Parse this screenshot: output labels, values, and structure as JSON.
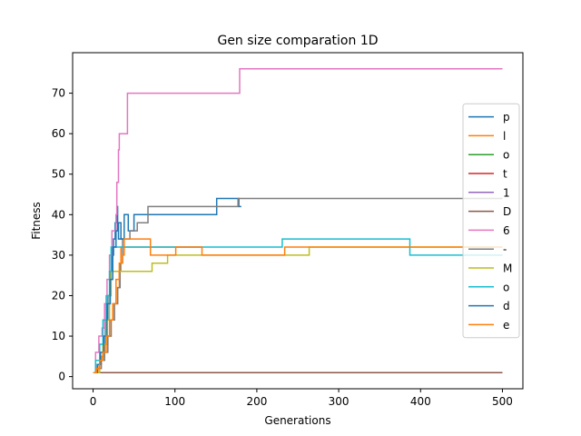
{
  "chart_data": {
    "type": "line",
    "title": "Gen size comparation 1D",
    "xlabel": "Generations",
    "ylabel": "Fitness",
    "xlim": [
      -25,
      525
    ],
    "ylim": [
      -3,
      80
    ],
    "xticks": [
      0,
      100,
      200,
      300,
      400,
      500
    ],
    "yticks": [
      0,
      10,
      20,
      30,
      40,
      50,
      60,
      70
    ],
    "grid": false,
    "legend_position": "center-right",
    "series": [
      {
        "name": "p",
        "color": "#1f77b4",
        "step": true,
        "points": [
          [
            0,
            1
          ],
          [
            4,
            2
          ],
          [
            8,
            4
          ],
          [
            12,
            8
          ],
          [
            15,
            14
          ],
          [
            18,
            20
          ],
          [
            21,
            26
          ],
          [
            23,
            30
          ],
          [
            25,
            34
          ],
          [
            27,
            38
          ],
          [
            29,
            42
          ],
          [
            30,
            38
          ],
          [
            31,
            34
          ],
          [
            36,
            34
          ],
          [
            38,
            40
          ],
          [
            42,
            40
          ],
          [
            43,
            36
          ],
          [
            48,
            36
          ],
          [
            50,
            40
          ],
          [
            70,
            40
          ],
          [
            150,
            40
          ],
          [
            151,
            44
          ],
          [
            177,
            44
          ],
          [
            178,
            42
          ],
          [
            181,
            42
          ]
        ]
      },
      {
        "name": "l",
        "color": "#ff7f0e",
        "step": true,
        "points": [
          [
            0,
            1
          ],
          [
            6,
            3
          ],
          [
            10,
            5
          ],
          [
            14,
            8
          ],
          [
            18,
            10
          ],
          [
            22,
            14
          ],
          [
            26,
            18
          ],
          [
            30,
            22
          ],
          [
            32,
            26
          ],
          [
            34,
            32
          ],
          [
            70,
            32
          ],
          [
            100,
            32
          ],
          [
            133,
            32
          ]
        ]
      },
      {
        "name": "o",
        "color": "#2ca02c",
        "step": true,
        "points": [
          [
            0,
            1
          ],
          [
            500,
            1
          ]
        ]
      },
      {
        "name": "t",
        "color": "#d62728",
        "step": true,
        "points": [
          [
            0,
            1
          ],
          [
            500,
            1
          ]
        ]
      },
      {
        "name": "1",
        "color": "#9467bd",
        "step": true,
        "points": [
          [
            0,
            1
          ],
          [
            500,
            1
          ]
        ]
      },
      {
        "name": "D",
        "color": "#8c564b",
        "step": true,
        "points": [
          [
            0,
            1
          ],
          [
            500,
            1
          ]
        ]
      },
      {
        "name": "6",
        "color": "#e377c2",
        "step": true,
        "points": [
          [
            0,
            1
          ],
          [
            3,
            6
          ],
          [
            7,
            10
          ],
          [
            11,
            12
          ],
          [
            14,
            18
          ],
          [
            17,
            24
          ],
          [
            20,
            30
          ],
          [
            23,
            36
          ],
          [
            28,
            40
          ],
          [
            29,
            48
          ],
          [
            31,
            56
          ],
          [
            32,
            60
          ],
          [
            40,
            60
          ],
          [
            42,
            70
          ],
          [
            178,
            70
          ],
          [
            179,
            76
          ],
          [
            500,
            76
          ]
        ]
      },
      {
        "name": "-",
        "color": "#7f7f7f",
        "step": true,
        "points": [
          [
            0,
            1
          ],
          [
            5,
            2
          ],
          [
            10,
            4
          ],
          [
            14,
            6
          ],
          [
            18,
            10
          ],
          [
            22,
            14
          ],
          [
            26,
            18
          ],
          [
            30,
            22
          ],
          [
            33,
            28
          ],
          [
            36,
            34
          ],
          [
            44,
            34
          ],
          [
            45,
            36
          ],
          [
            52,
            36
          ],
          [
            54,
            38
          ],
          [
            66,
            38
          ],
          [
            67,
            42
          ],
          [
            168,
            42
          ],
          [
            177,
            44
          ],
          [
            500,
            44
          ]
        ]
      },
      {
        "name": "M",
        "color": "#bcbd22",
        "step": true,
        "points": [
          [
            0,
            1
          ],
          [
            8,
            4
          ],
          [
            12,
            8
          ],
          [
            16,
            14
          ],
          [
            20,
            20
          ],
          [
            22,
            26
          ],
          [
            70,
            26
          ],
          [
            72,
            28
          ],
          [
            90,
            28
          ],
          [
            91,
            30
          ],
          [
            263,
            30
          ],
          [
            264,
            32
          ],
          [
            500,
            32
          ]
        ]
      },
      {
        "name": "o",
        "color": "#17becf",
        "step": true,
        "points": [
          [
            0,
            1
          ],
          [
            3,
            4
          ],
          [
            8,
            8
          ],
          [
            12,
            14
          ],
          [
            16,
            20
          ],
          [
            20,
            26
          ],
          [
            22,
            32
          ],
          [
            230,
            32
          ],
          [
            231,
            34
          ],
          [
            386,
            34
          ],
          [
            387,
            30
          ],
          [
            500,
            30
          ]
        ]
      },
      {
        "name": "d",
        "color": "#1f77b4",
        "step": true,
        "points": [
          [
            0,
            1
          ],
          [
            5,
            3
          ],
          [
            9,
            6
          ],
          [
            13,
            10
          ],
          [
            17,
            18
          ],
          [
            21,
            24
          ],
          [
            24,
            32
          ],
          [
            28,
            36
          ],
          [
            30,
            38
          ],
          [
            34,
            34
          ],
          [
            37,
            34
          ]
        ]
      },
      {
        "name": "e",
        "color": "#ff7f0e",
        "step": true,
        "points": [
          [
            0,
            1
          ],
          [
            4,
            2
          ],
          [
            8,
            4
          ],
          [
            12,
            6
          ],
          [
            16,
            10
          ],
          [
            20,
            14
          ],
          [
            24,
            18
          ],
          [
            28,
            24
          ],
          [
            32,
            28
          ],
          [
            36,
            30
          ],
          [
            38,
            34
          ],
          [
            68,
            34
          ],
          [
            70,
            30
          ],
          [
            100,
            30
          ],
          [
            101,
            32
          ],
          [
            132,
            32
          ],
          [
            133,
            30
          ],
          [
            233,
            30
          ],
          [
            234,
            32
          ],
          [
            500,
            32
          ]
        ]
      }
    ]
  }
}
